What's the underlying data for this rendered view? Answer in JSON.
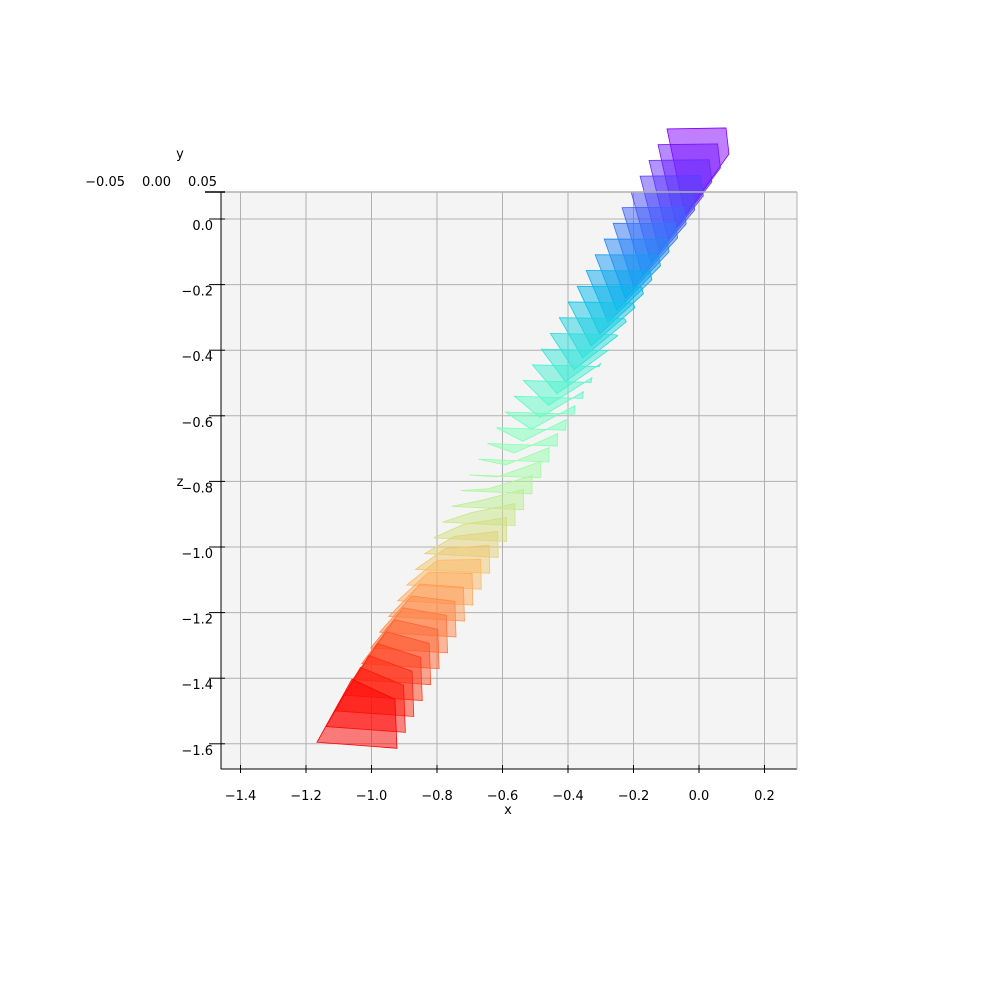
{
  "chart_data": {
    "type": "3d-polygons",
    "view": "top-down (x–z plane)",
    "xlabel": "x",
    "ylabel": "y",
    "zlabel": "z",
    "xlim": [
      -1.46,
      0.3
    ],
    "zlim": [
      -1.68,
      0.08
    ],
    "x_ticks": [
      "−1.4",
      "−1.2",
      "−1.0",
      "−0.8",
      "−0.6",
      "−0.4",
      "−0.2",
      "0.0",
      "0.2"
    ],
    "x_tick_values": [
      -1.4,
      -1.2,
      -1.0,
      -0.8,
      -0.6,
      -0.4,
      -0.2,
      0.0,
      0.2
    ],
    "z_ticks": [
      "0.0",
      "−0.2",
      "−0.4",
      "−0.6",
      "−0.8",
      "−1.0",
      "−1.2",
      "−1.4",
      "−1.6"
    ],
    "z_tick_values": [
      0.0,
      -0.2,
      -0.4,
      -0.6,
      -0.8,
      -1.0,
      -1.2,
      -1.4,
      -1.6
    ],
    "y_ticks_overlapping": [
      "−0.05",
      "0.00",
      "0.05"
    ],
    "grid": true,
    "pane_color": "#f4f4f4",
    "colormap": "rainbow",
    "alpha": 0.5,
    "polygon_count": 40,
    "trajectory": {
      "start": {
        "x": 0.0,
        "z": 0.18
      },
      "end": {
        "x": -1.02,
        "z": -1.51
      }
    }
  }
}
